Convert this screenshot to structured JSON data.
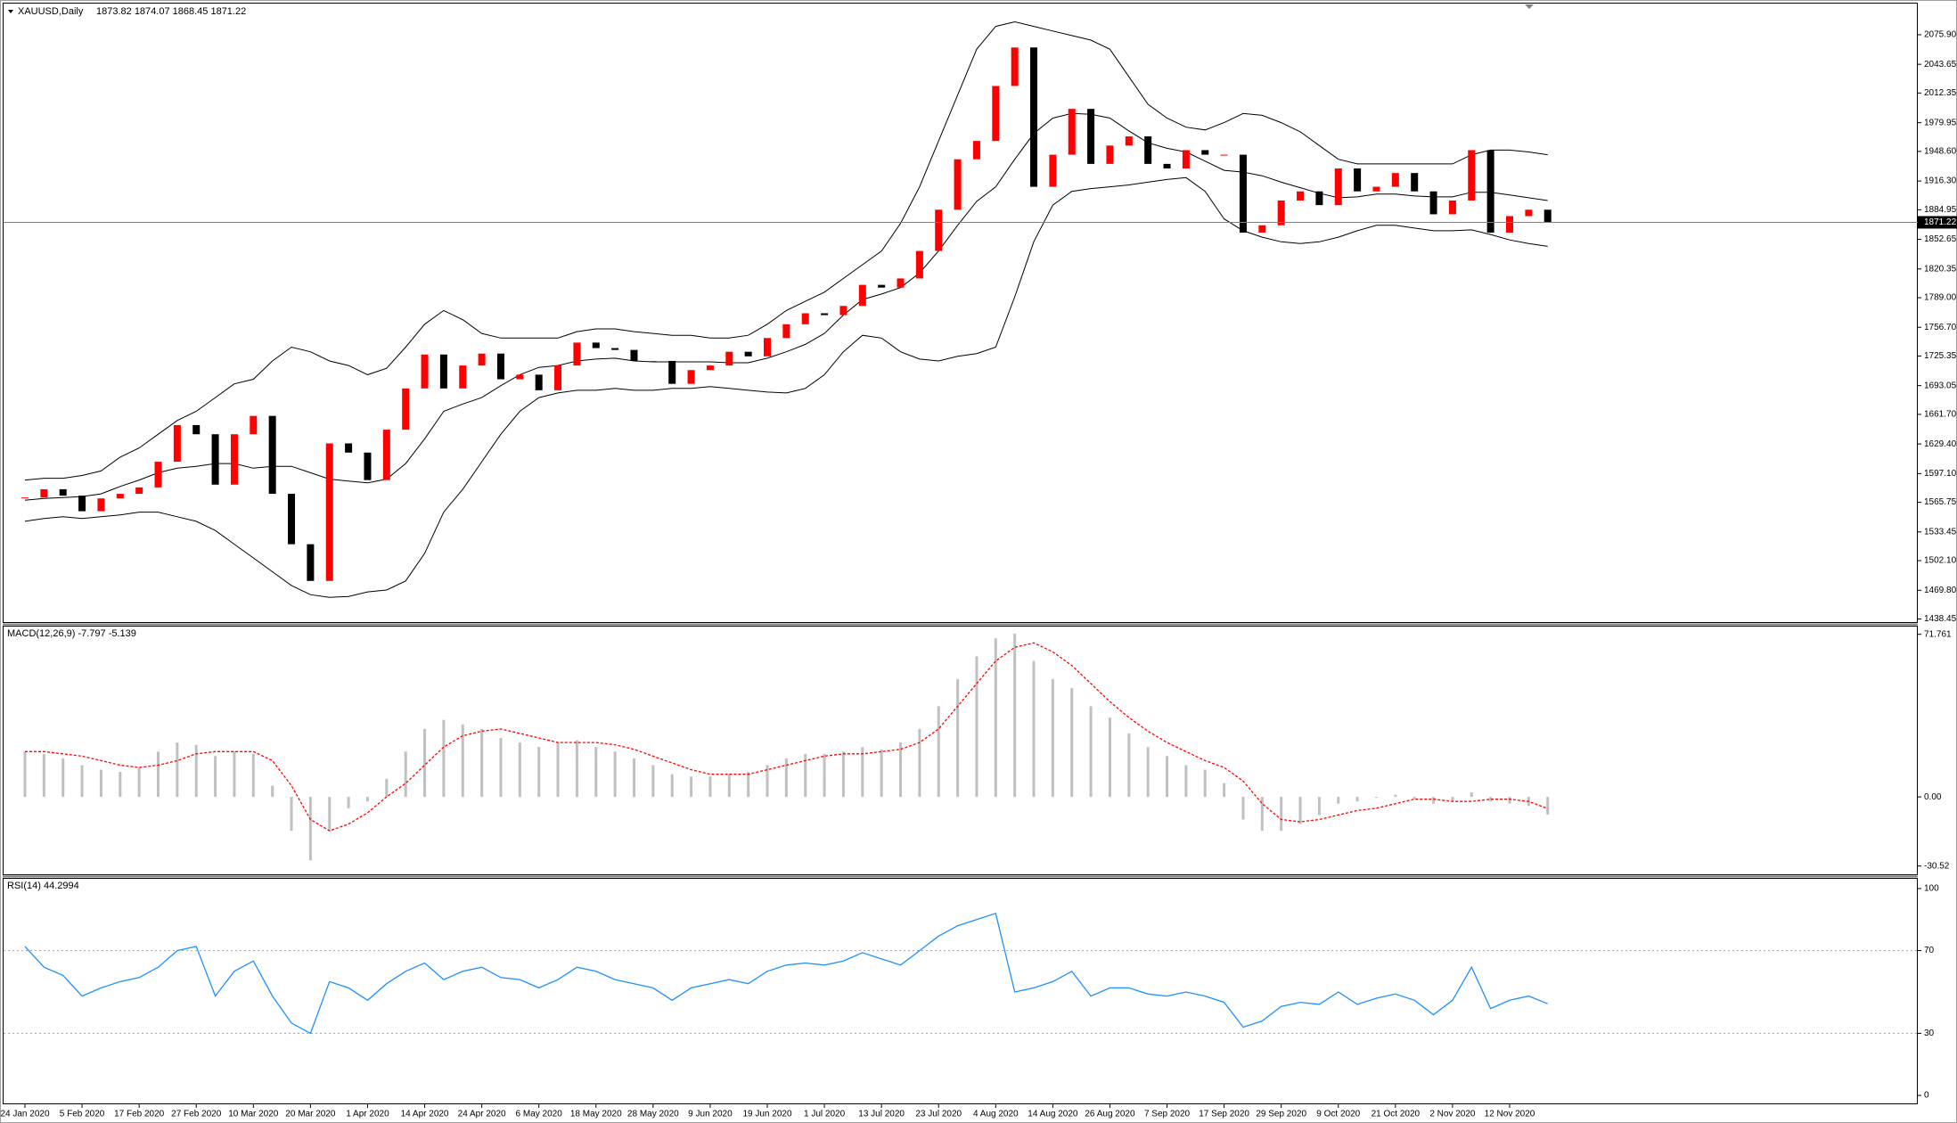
{
  "chart_data": [
    {
      "type": "candlestick",
      "title": "XAUUSD,Daily",
      "subtitle": "1873.82 1874.07 1868.45 1871.22",
      "categories": [
        "24 Jan 2020",
        null,
        null,
        "5 Feb 2020",
        null,
        null,
        "17 Feb 2020",
        null,
        null,
        "27 Feb 2020",
        null,
        null,
        "10 Mar 2020",
        null,
        null,
        "20 Mar 2020",
        null,
        null,
        "1 Apr 2020",
        null,
        null,
        "14 Apr 2020",
        null,
        null,
        "24 Apr 2020",
        null,
        null,
        "6 May 2020",
        null,
        null,
        "18 May 2020",
        null,
        null,
        "28 May 2020",
        null,
        null,
        "9 Jun 2020",
        null,
        null,
        "19 Jun 2020",
        null,
        null,
        "1 Jul 2020",
        null,
        null,
        "13 Jul 2020",
        null,
        null,
        "23 Jul 2020",
        null,
        null,
        "4 Aug 2020",
        null,
        null,
        "14 Aug 2020",
        null,
        null,
        "26 Aug 2020",
        null,
        null,
        "7 Sep 2020",
        null,
        null,
        "17 Sep 2020",
        null,
        null,
        "29 Sep 2020",
        null,
        null,
        "9 Oct 2020",
        null,
        null,
        "21 Oct 2020",
        null,
        null,
        "2 Nov 2020",
        null,
        null,
        "12 Nov 2020",
        null,
        null
      ],
      "close": [
        1571,
        1580,
        1573,
        1556,
        1570,
        1575,
        1582,
        1610,
        1650,
        1640,
        1585,
        1640,
        1660,
        1575,
        1520,
        1480,
        1630,
        1620,
        1590,
        1645,
        1690,
        1727,
        1690,
        1715,
        1728,
        1700,
        1705,
        1688,
        1715,
        1740,
        1734,
        1732,
        1720,
        1720,
        1695,
        1710,
        1715,
        1730,
        1725,
        1745,
        1760,
        1772,
        1770,
        1780,
        1803,
        1800,
        1810,
        1840,
        1885,
        1940,
        1960,
        2020,
        2062,
        1910,
        1945,
        1995,
        1935,
        1955,
        1965,
        1935,
        1930,
        1950,
        1945,
        1945,
        1860,
        1868,
        1895,
        1905,
        1890,
        1930,
        1905,
        1910,
        1925,
        1905,
        1880,
        1895,
        1950,
        1860,
        1878,
        1885,
        1871.22
      ],
      "bands": {
        "upper": [
          1590,
          1592,
          1592,
          1595,
          1600,
          1615,
          1625,
          1640,
          1655,
          1665,
          1680,
          1695,
          1700,
          1720,
          1735,
          1730,
          1720,
          1715,
          1705,
          1712,
          1735,
          1760,
          1775,
          1765,
          1750,
          1745,
          1745,
          1745,
          1745,
          1752,
          1755,
          1755,
          1752,
          1750,
          1748,
          1748,
          1745,
          1745,
          1748,
          1760,
          1775,
          1785,
          1795,
          1810,
          1825,
          1840,
          1870,
          1910,
          1960,
          2010,
          2060,
          2085,
          2090,
          2085,
          2080,
          2075,
          2070,
          2060,
          2030,
          2000,
          1985,
          1975,
          1972,
          1980,
          1990,
          1988,
          1980,
          1970,
          1955,
          1940,
          1935,
          1935,
          1935,
          1935,
          1935,
          1935,
          1945,
          1950,
          1950,
          1948,
          1945
        ],
        "middle": [
          1568,
          1570,
          1571,
          1572,
          1575,
          1583,
          1590,
          1598,
          1603,
          1605,
          1608,
          1608,
          1603,
          1605,
          1605,
          1598,
          1591,
          1589,
          1587,
          1591,
          1608,
          1635,
          1665,
          1673,
          1680,
          1693,
          1705,
          1713,
          1715,
          1720,
          1722,
          1723,
          1720,
          1719,
          1719,
          1719,
          1719,
          1718,
          1718,
          1723,
          1730,
          1738,
          1750,
          1770,
          1787,
          1793,
          1800,
          1816,
          1840,
          1868,
          1894,
          1910,
          1940,
          1968,
          1985,
          1990,
          1989,
          1985,
          1971,
          1958,
          1952,
          1948,
          1938,
          1928,
          1926,
          1922,
          1915,
          1909,
          1903,
          1898,
          1899,
          1902,
          1902,
          1900,
          1899,
          1899,
          1904,
          1904,
          1901,
          1898,
          1895
        ],
        "lower": [
          1545,
          1548,
          1550,
          1548,
          1550,
          1552,
          1555,
          1555,
          1550,
          1545,
          1535,
          1520,
          1505,
          1490,
          1475,
          1465,
          1462,
          1463,
          1468,
          1470,
          1480,
          1510,
          1555,
          1580,
          1610,
          1640,
          1665,
          1680,
          1685,
          1688,
          1688,
          1690,
          1688,
          1688,
          1690,
          1690,
          1692,
          1690,
          1688,
          1686,
          1685,
          1690,
          1705,
          1730,
          1748,
          1745,
          1730,
          1722,
          1720,
          1725,
          1728,
          1735,
          1790,
          1850,
          1890,
          1905,
          1908,
          1910,
          1912,
          1915,
          1918,
          1920,
          1905,
          1875,
          1862,
          1855,
          1850,
          1848,
          1850,
          1855,
          1862,
          1868,
          1868,
          1865,
          1862,
          1862,
          1863,
          1858,
          1852,
          1848,
          1845
        ]
      },
      "up_color": "#ff0000",
      "down_color": "#000000",
      "band_color": "#000000",
      "last_price": {
        "value": 1871.22,
        "label": "1871.22"
      },
      "ylim": [
        1436,
        2107
      ],
      "yticks": [
        {
          "value": 2075.9,
          "label": "2075.90"
        },
        2043.65,
        2012.35,
        1979.95,
        {
          "value": 1948.6,
          "label": "1948.60"
        },
        {
          "value": 1916.3,
          "label": "1916.30"
        },
        1884.95,
        1852.65,
        1820.35,
        {
          "value": 1789,
          "label": "1789.00"
        },
        {
          "value": 1756.7,
          "label": "1756.70"
        },
        1725.35,
        1693.05,
        {
          "value": 1661.7,
          "label": "1661.70"
        },
        {
          "value": 1629.4,
          "label": "1629.40"
        },
        {
          "value": 1597.1,
          "label": "1597.10"
        },
        1565.75,
        1533.45,
        {
          "value": 1502.1,
          "label": "1502.10"
        },
        {
          "value": 1469.8,
          "label": "1469.80"
        },
        1438.45
      ]
    },
    {
      "type": "macd",
      "title": "MACD(12,26,9) -7.797 -5.139",
      "histogram": [
        20,
        19,
        17,
        14,
        12,
        11,
        13,
        20,
        24,
        23,
        18,
        20,
        19,
        5,
        -15,
        -28,
        -15,
        -5,
        -2,
        8,
        20,
        30,
        34,
        32,
        30,
        26,
        24,
        22,
        24,
        25,
        22,
        20,
        17,
        14,
        10,
        9,
        9,
        10,
        11,
        14,
        17,
        19,
        19,
        20,
        22,
        21,
        24,
        30,
        40,
        52,
        62,
        70,
        72,
        60,
        52,
        48,
        40,
        35,
        28,
        22,
        18,
        14,
        12,
        6,
        -10,
        -15,
        -15,
        -12,
        -8,
        -3,
        -2,
        0,
        1,
        -1,
        -3,
        -2,
        2,
        -2,
        -3,
        -4,
        -7.797
      ],
      "signal": [
        20,
        20,
        19,
        18,
        16,
        14,
        13,
        14,
        16,
        19,
        20,
        20,
        20,
        16,
        5,
        -10,
        -15,
        -12,
        -7,
        0,
        6,
        14,
        22,
        27,
        29,
        30,
        28,
        26,
        24,
        24,
        24,
        23,
        21,
        18,
        15,
        12,
        10,
        10,
        10,
        12,
        14,
        16,
        18,
        19,
        19,
        20,
        21,
        24,
        30,
        40,
        50,
        60,
        66,
        68,
        64,
        58,
        50,
        42,
        35,
        29,
        24,
        20,
        16,
        13,
        7,
        -3,
        -10,
        -11,
        -10,
        -8,
        -6,
        -5,
        -3,
        -1,
        -1,
        -2,
        -2,
        -1,
        -1,
        -2,
        -5.139
      ],
      "hist_color": "#c0c0c0",
      "signal_color": "#ff0000",
      "ylim": [
        -33,
        74
      ],
      "yticks": [
        71.761,
        {
          "value": 0,
          "label": "0.00"
        },
        -30.52
      ]
    },
    {
      "type": "line",
      "title": "RSI(14) 44.2994",
      "values": [
        72,
        62,
        58,
        48,
        52,
        55,
        57,
        62,
        70,
        72,
        48,
        60,
        65,
        48,
        35,
        30,
        55,
        52,
        46,
        54,
        60,
        64,
        56,
        60,
        62,
        57,
        56,
        52,
        56,
        62,
        60,
        56,
        54,
        52,
        46,
        52,
        54,
        56,
        54,
        60,
        63,
        64,
        63,
        65,
        69,
        66,
        63,
        70,
        77,
        82,
        85,
        88,
        50,
        52,
        55,
        60,
        48,
        52,
        52,
        49,
        48,
        50,
        48,
        45,
        33,
        36,
        43,
        45,
        44,
        50,
        44,
        47,
        49,
        46,
        39,
        46,
        62,
        42,
        46,
        48,
        44.2994
      ],
      "color": "#1e90ff",
      "levels": [
        70,
        30
      ],
      "ylim": [
        -3,
        103
      ],
      "yticks": [
        100,
        70,
        30,
        0
      ]
    }
  ]
}
